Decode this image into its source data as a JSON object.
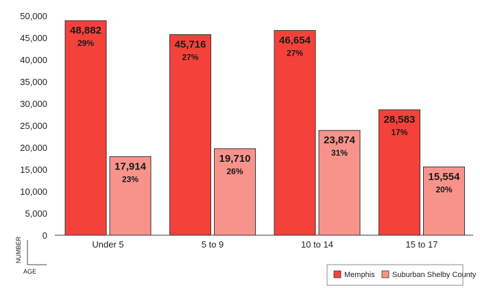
{
  "chart_data": {
    "type": "bar",
    "title": "",
    "xlabel": "AGE",
    "ylabel": "NUMBER",
    "ylim": [
      0,
      50000
    ],
    "yticks": [
      "0",
      "5,000",
      "10,000",
      "15,000",
      "20,000",
      "25,000",
      "30,000",
      "35,000",
      "40,000",
      "45,000",
      "50,000"
    ],
    "categories": [
      "Under 5",
      "5 to 9",
      "10 to 14",
      "15 to 17"
    ],
    "legend_position": "bottom-right",
    "series": [
      {
        "name": "Memphis",
        "color": "#f4423b",
        "values": [
          48882,
          45716,
          46654,
          28583
        ],
        "value_labels": [
          "48,882",
          "45,716",
          "46,654",
          "28,583"
        ],
        "percent_labels": [
          "29%",
          "27%",
          "27%",
          "17%"
        ]
      },
      {
        "name": "Suburban Shelby County",
        "color": "#f8938b",
        "values": [
          17914,
          19710,
          23874,
          15554
        ],
        "value_labels": [
          "17,914",
          "19,710",
          "23,874",
          "15,554"
        ],
        "percent_labels": [
          "23%",
          "26%",
          "31%",
          "20%"
        ]
      }
    ]
  }
}
